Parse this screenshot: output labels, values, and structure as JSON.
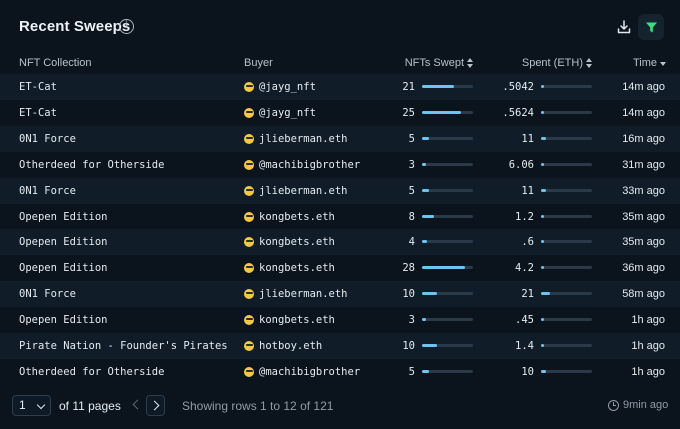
{
  "header": {
    "title": "Recent Sweeps",
    "info_icon": "info-icon",
    "download_icon": "download-icon",
    "filter_icon": "filter-icon",
    "accent": "#3ddc84"
  },
  "columns": {
    "collection": "NFT Collection",
    "buyer": "Buyer",
    "swept": "NFTs Swept",
    "spent": "Spent (ETH)",
    "time": "Time"
  },
  "rows": [
    {
      "collection": "ET-Cat",
      "buyer": "@jayg_nft",
      "swept": "21",
      "swept_pct": 0.62,
      "spent": ".5042",
      "spent_pct": 0.01,
      "time": "14m ago"
    },
    {
      "collection": "ET-Cat",
      "buyer": "@jayg_nft",
      "swept": "25",
      "swept_pct": 0.76,
      "spent": ".5624",
      "spent_pct": 0.01,
      "time": "14m ago"
    },
    {
      "collection": "0N1 Force",
      "buyer": "jlieberman.eth",
      "swept": "5",
      "swept_pct": 0.13,
      "spent": "11",
      "spent_pct": 0.1,
      "time": "16m ago"
    },
    {
      "collection": "Otherdeed for Otherside",
      "buyer": "@machibigbrother",
      "swept": "3",
      "swept_pct": 0.07,
      "spent": "6.06",
      "spent_pct": 0.05,
      "time": "31m ago"
    },
    {
      "collection": "0N1 Force",
      "buyer": "jlieberman.eth",
      "swept": "5",
      "swept_pct": 0.13,
      "spent": "11",
      "spent_pct": 0.1,
      "time": "33m ago"
    },
    {
      "collection": "Opepen Edition",
      "buyer": "kongbets.eth",
      "swept": "8",
      "swept_pct": 0.23,
      "spent": "1.2",
      "spent_pct": 0.02,
      "time": "35m ago"
    },
    {
      "collection": "Opepen Edition",
      "buyer": "kongbets.eth",
      "swept": "4",
      "swept_pct": 0.1,
      "spent": ".6",
      "spent_pct": 0.01,
      "time": "35m ago"
    },
    {
      "collection": "Opepen Edition",
      "buyer": "kongbets.eth",
      "swept": "28",
      "swept_pct": 0.85,
      "spent": "4.2",
      "spent_pct": 0.04,
      "time": "36m ago"
    },
    {
      "collection": "0N1 Force",
      "buyer": "jlieberman.eth",
      "swept": "10",
      "swept_pct": 0.3,
      "spent": "21",
      "spent_pct": 0.18,
      "time": "58m ago"
    },
    {
      "collection": "Opepen Edition",
      "buyer": "kongbets.eth",
      "swept": "3",
      "swept_pct": 0.07,
      "spent": ".45",
      "spent_pct": 0.01,
      "time": "1h ago"
    },
    {
      "collection": "Pirate Nation - Founder's Pirates",
      "buyer": "hotboy.eth",
      "swept": "10",
      "swept_pct": 0.3,
      "spent": "1.4",
      "spent_pct": 0.02,
      "time": "1h ago"
    },
    {
      "collection": "Otherdeed for Otherside",
      "buyer": "@machibigbrother",
      "swept": "5",
      "swept_pct": 0.13,
      "spent": "10",
      "spent_pct": 0.09,
      "time": "1h ago"
    }
  ],
  "footer": {
    "page_value": "1",
    "pages_text": "of 11 pages",
    "showing_text": "Showing rows 1 to 12 of 121",
    "refresh_text": "9min ago"
  }
}
